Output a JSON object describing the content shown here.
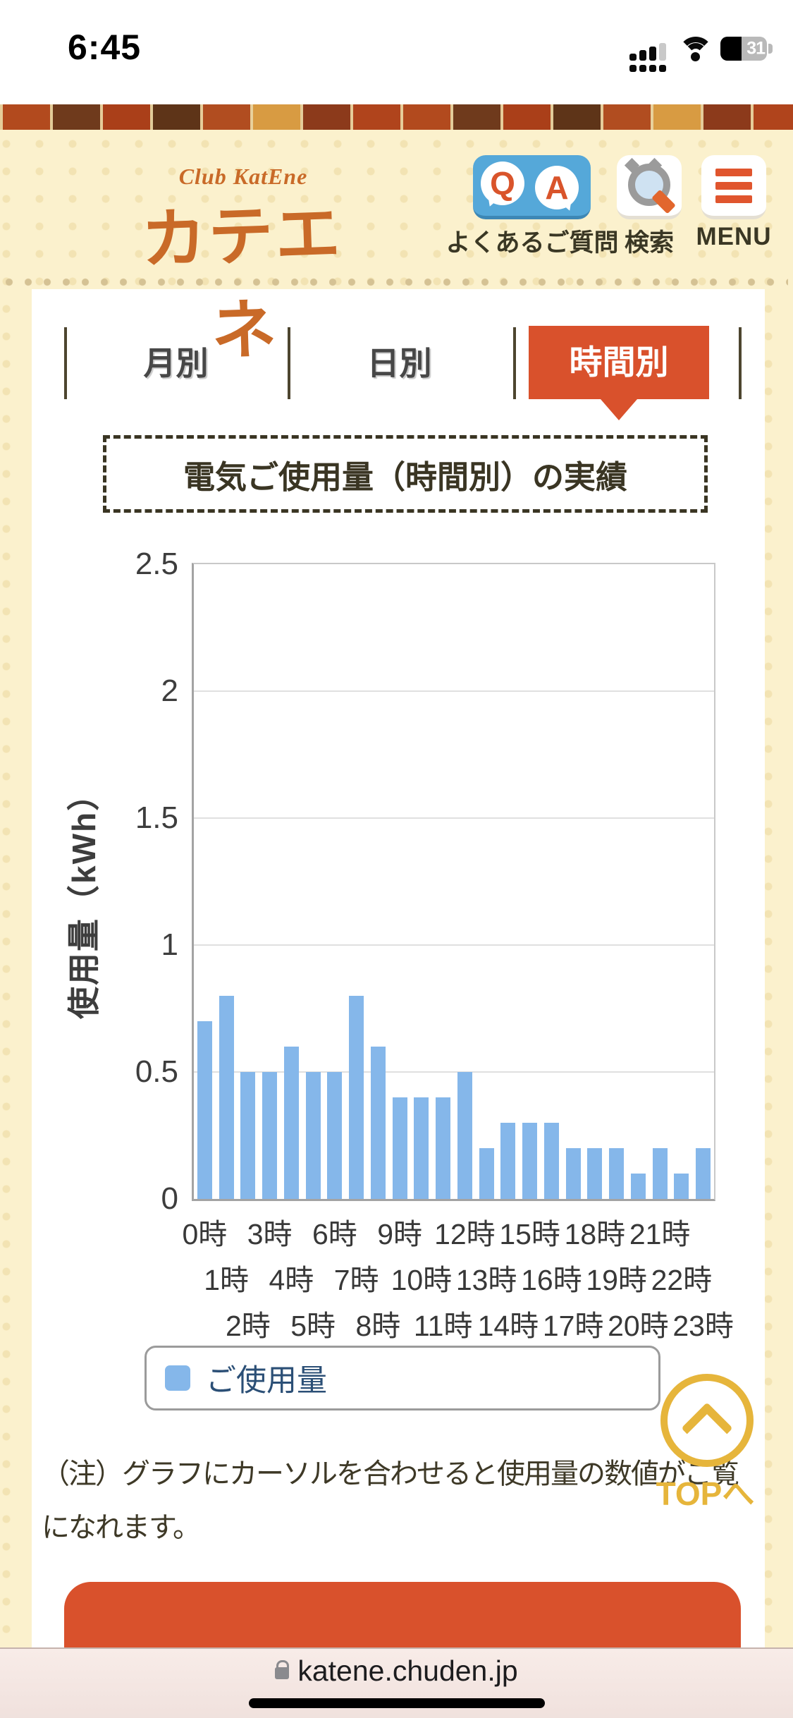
{
  "status_bar": {
    "time": "6:45",
    "battery_percent": "31"
  },
  "header": {
    "logo_script": "Club KatEne",
    "logo_text": "カテエネ",
    "qa_q": "Q",
    "qa_a": "A",
    "nav_qa_label": "よくあるご質問",
    "nav_search_label": "検索",
    "nav_menu_label": "MENU"
  },
  "tabs": [
    {
      "label": "月別",
      "active": false
    },
    {
      "label": "日別",
      "active": false
    },
    {
      "label": "時間別",
      "active": true
    }
  ],
  "section_title": "電気ご使用量（時間別）の実績",
  "chart_data": {
    "type": "bar",
    "title": "電気ご使用量（時間別）の実績",
    "ylabel": "使用量（kWh）",
    "xlabel": "",
    "ylim": [
      0,
      2.5
    ],
    "yticks": [
      "2.5",
      "2",
      "1.5",
      "1",
      "0.5",
      "0"
    ],
    "grid": true,
    "legend_position": "bottom",
    "categories": [
      "0時",
      "1時",
      "2時",
      "3時",
      "4時",
      "5時",
      "6時",
      "7時",
      "8時",
      "9時",
      "10時",
      "11時",
      "12時",
      "13時",
      "14時",
      "15時",
      "16時",
      "17時",
      "18時",
      "19時",
      "20時",
      "21時",
      "22時",
      "23時"
    ],
    "series": [
      {
        "name": "ご使用量",
        "color": "#85b7ea",
        "values": [
          0.7,
          0.8,
          0.5,
          0.5,
          0.6,
          0.5,
          0.5,
          0.8,
          0.6,
          0.4,
          0.4,
          0.4,
          0.5,
          0.2,
          0.3,
          0.3,
          0.3,
          0.2,
          0.2,
          0.2,
          0.1,
          0.2,
          0.1,
          0.2
        ]
      }
    ]
  },
  "legend": {
    "label": "ご使用量",
    "color": "#85b7ea"
  },
  "note_lines": [
    "（注）グラフにカーソルを合わせると使用量の数値がご覧",
    "になれます。"
  ],
  "top_button_label": "TOPへ",
  "browser": {
    "domain": "katene.chuden.jp"
  },
  "colors": {
    "accent_orange": "#d9512c",
    "logo_orange": "#c96a28",
    "qa_blue": "#55a8d9",
    "bar_blue": "#85b7ea",
    "cream_background": "#fbf1cd",
    "top_button_gold": "#e6b53b"
  }
}
